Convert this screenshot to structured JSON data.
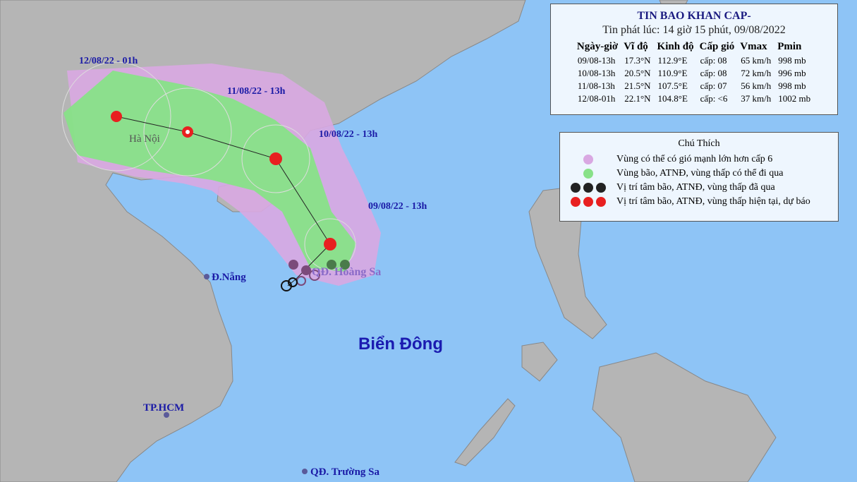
{
  "bulletin": {
    "title": "TIN BAO KHAN CAP-",
    "issued": "Tin phát lúc: 14 giờ 15 phút, 09/08/2022",
    "headers": [
      "Ngày-giờ",
      "Vĩ độ",
      "Kinh độ",
      "Cấp gió",
      "Vmax",
      "Pmin"
    ],
    "rows": [
      [
        "09/08-13h",
        "17.3°N",
        "112.9°E",
        "cấp: 08",
        "65 km/h",
        "998 mb"
      ],
      [
        "10/08-13h",
        "20.5°N",
        "110.9°E",
        "cấp: 08",
        "72 km/h",
        "996 mb"
      ],
      [
        "11/08-13h",
        "21.5°N",
        "107.5°E",
        "cấp: 07",
        "56 km/h",
        "998 mb"
      ],
      [
        "12/08-01h",
        "22.1°N",
        "104.8°E",
        "cấp: <6",
        "37 km/h",
        "1002 mb"
      ]
    ]
  },
  "legend": {
    "title": "Chú Thích",
    "items": [
      "Vùng có thể có gió mạnh lớn hơn cấp 6",
      "Vùng bão, ATNĐ, vùng thấp có thể đi qua",
      "Vị trí tâm bão, ATNĐ, vùng thấp đã qua",
      "Vị trí tâm bão, ATNĐ, vùng thấp hiện tại, dự báo"
    ]
  },
  "track_labels": [
    "12/08/22 - 01h",
    "11/08/22 - 13h",
    "10/08/22 - 13h",
    "09/08/22 - 13h"
  ],
  "places": {
    "hanoi": "Hà Nội",
    "danang": "Đ.Nẵng",
    "hcm": "TP.HCM",
    "truongsa": "QĐ. Trường Sa",
    "hoangsa": "QĐ. Hoàng Sa",
    "sea": "Biển Đông"
  }
}
